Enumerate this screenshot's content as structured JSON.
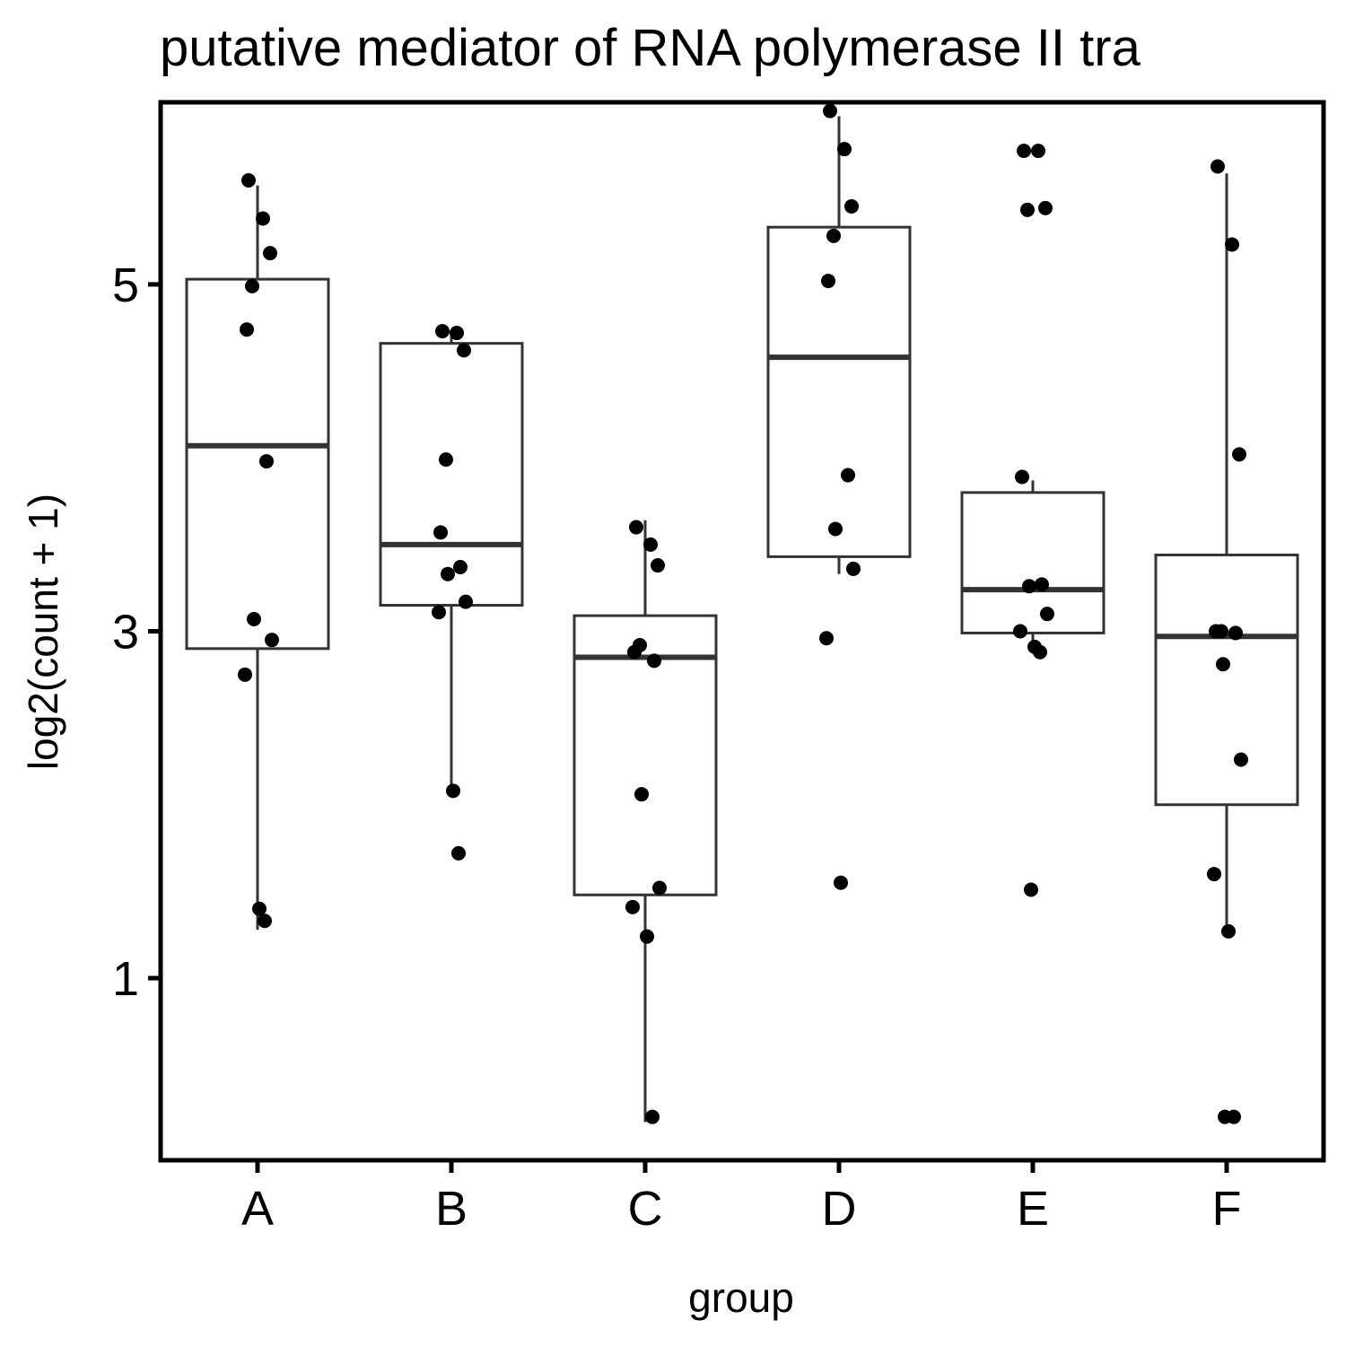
{
  "chart_data": {
    "type": "boxplot",
    "title": "putative mediator of RNA polymerase II tra",
    "xlabel": "group",
    "ylabel": "log2(count + 1)",
    "ylim": [
      -0.05,
      6.05
    ],
    "yticks": [
      1,
      3,
      5
    ],
    "categories": [
      "A",
      "B",
      "C",
      "D",
      "E",
      "F"
    ],
    "boxes": [
      {
        "group": "A",
        "whisker_low": 1.28,
        "q1": 2.9,
        "median": 4.07,
        "q3": 5.03,
        "whisker_high": 5.57
      },
      {
        "group": "B",
        "whisker_low": 2.06,
        "q1": 3.15,
        "median": 3.5,
        "q3": 4.66,
        "whisker_high": 4.71
      },
      {
        "group": "C",
        "whisker_low": 0.17,
        "q1": 1.48,
        "median": 2.85,
        "q3": 3.09,
        "whisker_high": 3.64
      },
      {
        "group": "D",
        "whisker_low": 3.33,
        "q1": 3.43,
        "median": 4.58,
        "q3": 5.33,
        "whisker_high": 5.97
      },
      {
        "group": "E",
        "whisker_low": 2.93,
        "q1": 2.99,
        "median": 3.24,
        "q3": 3.8,
        "whisker_high": 3.87
      },
      {
        "group": "F",
        "whisker_low": 1.26,
        "q1": 2.0,
        "median": 2.97,
        "q3": 3.44,
        "whisker_high": 5.64
      }
    ],
    "points": [
      {
        "group": "A",
        "y": [
          5.6,
          5.38,
          5.18,
          4.99,
          4.74,
          3.98,
          3.07,
          2.95,
          2.75,
          1.4,
          1.33
        ]
      },
      {
        "group": "B",
        "y": [
          4.73,
          4.72,
          4.62,
          3.99,
          3.57,
          3.37,
          3.33,
          3.17,
          3.11,
          2.08,
          1.72
        ]
      },
      {
        "group": "C",
        "y": [
          3.6,
          3.5,
          3.38,
          2.92,
          2.88,
          2.83,
          2.06,
          1.52,
          1.41,
          1.24,
          0.2
        ]
      },
      {
        "group": "D",
        "y": [
          6.0,
          5.78,
          5.45,
          5.28,
          5.02,
          3.9,
          3.59,
          3.36,
          2.96,
          1.55
        ]
      },
      {
        "group": "E",
        "y": [
          5.77,
          5.77,
          5.44,
          5.43,
          3.89,
          3.27,
          3.26,
          3.1,
          3.0,
          2.91,
          2.88,
          1.51
        ]
      },
      {
        "group": "F",
        "y": [
          5.68,
          5.23,
          4.02,
          3.0,
          3.0,
          2.99,
          2.81,
          2.26,
          1.6,
          1.27,
          0.2,
          0.2
        ]
      }
    ],
    "grid": false,
    "legend": "none",
    "colors": {
      "box_stroke": "#333333",
      "point": "#000000",
      "frame": "#000000"
    }
  }
}
